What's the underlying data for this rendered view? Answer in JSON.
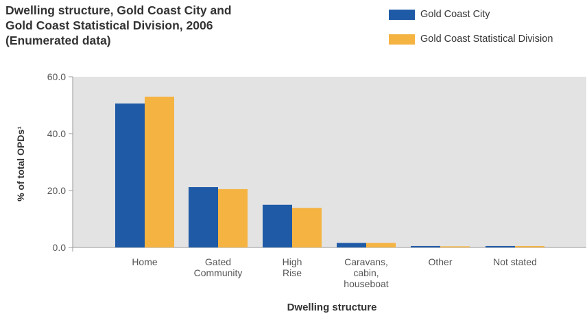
{
  "chart_data": {
    "type": "bar",
    "title_lines": [
      "Dwelling structure, Gold Coast City and",
      "Gold Coast Statistical Division, 2006",
      "(Enumerated data)"
    ],
    "xlabel": "Dwelling structure",
    "ylabel": "% of total OPDs¹",
    "categories": [
      [
        "Home"
      ],
      [
        "Gated",
        "Community"
      ],
      [
        "High",
        "Rise"
      ],
      [
        "Caravans,",
        "cabin,",
        "houseboat"
      ],
      [
        "Other"
      ],
      [
        "Not stated"
      ]
    ],
    "series": [
      {
        "name": "Gold Coast City",
        "color": "#1f5aa6",
        "values": [
          50.6,
          21.2,
          15.0,
          1.6,
          0.5,
          0.5
        ]
      },
      {
        "name": "Gold Coast Statistical Division",
        "color": "#f5b342",
        "values": [
          53.0,
          20.5,
          13.9,
          1.6,
          0.4,
          0.5
        ]
      }
    ],
    "yticks": [
      "0.0",
      "20.0",
      "40.0",
      "60.0"
    ],
    "ylim": [
      0,
      60
    ],
    "grid": false,
    "legend_position": "top-right",
    "plot_background": "#e3e3e3"
  }
}
